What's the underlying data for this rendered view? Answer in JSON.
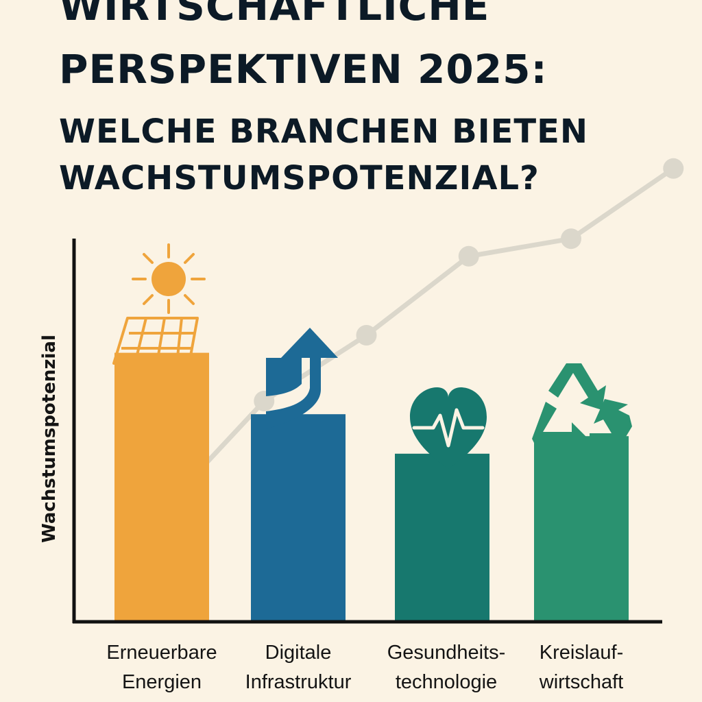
{
  "header": {
    "line1": "WIRTSCHAFTLICHE",
    "line2": "PERSPEKTIVEN 2025:",
    "line3": "WELCHE BRANCHEN BIETEN",
    "line4": "WACHSTUMSPOTENZIAL?"
  },
  "chart_data": {
    "type": "bar",
    "ylabel": "Wachstumspotenzial",
    "xlabel": "",
    "ylim": [
      0,
      100
    ],
    "grid": false,
    "categories": [
      [
        "Erneuerbare",
        "Energien"
      ],
      [
        "Digitale",
        "Infrastruktur"
      ],
      [
        "Gesundheits-",
        "technologie"
      ],
      [
        "Kreislauf-",
        "wirtschaft"
      ]
    ],
    "values": [
      61,
      47,
      38,
      42
    ],
    "bar_colors": [
      "#efa43c",
      "#1d6a96",
      "#17786e",
      "#2a9270"
    ],
    "icons": [
      "solar-panel-sun-icon",
      "rising-arrow-icon",
      "heart-pulse-icon",
      "recycle-icon"
    ],
    "trend": {
      "type": "line",
      "color": "#dbd7cb",
      "x": [
        0,
        0.75,
        1.5,
        2.25,
        3,
        3.75
      ],
      "values": [
        25,
        50,
        65,
        83,
        87,
        103
      ]
    }
  }
}
